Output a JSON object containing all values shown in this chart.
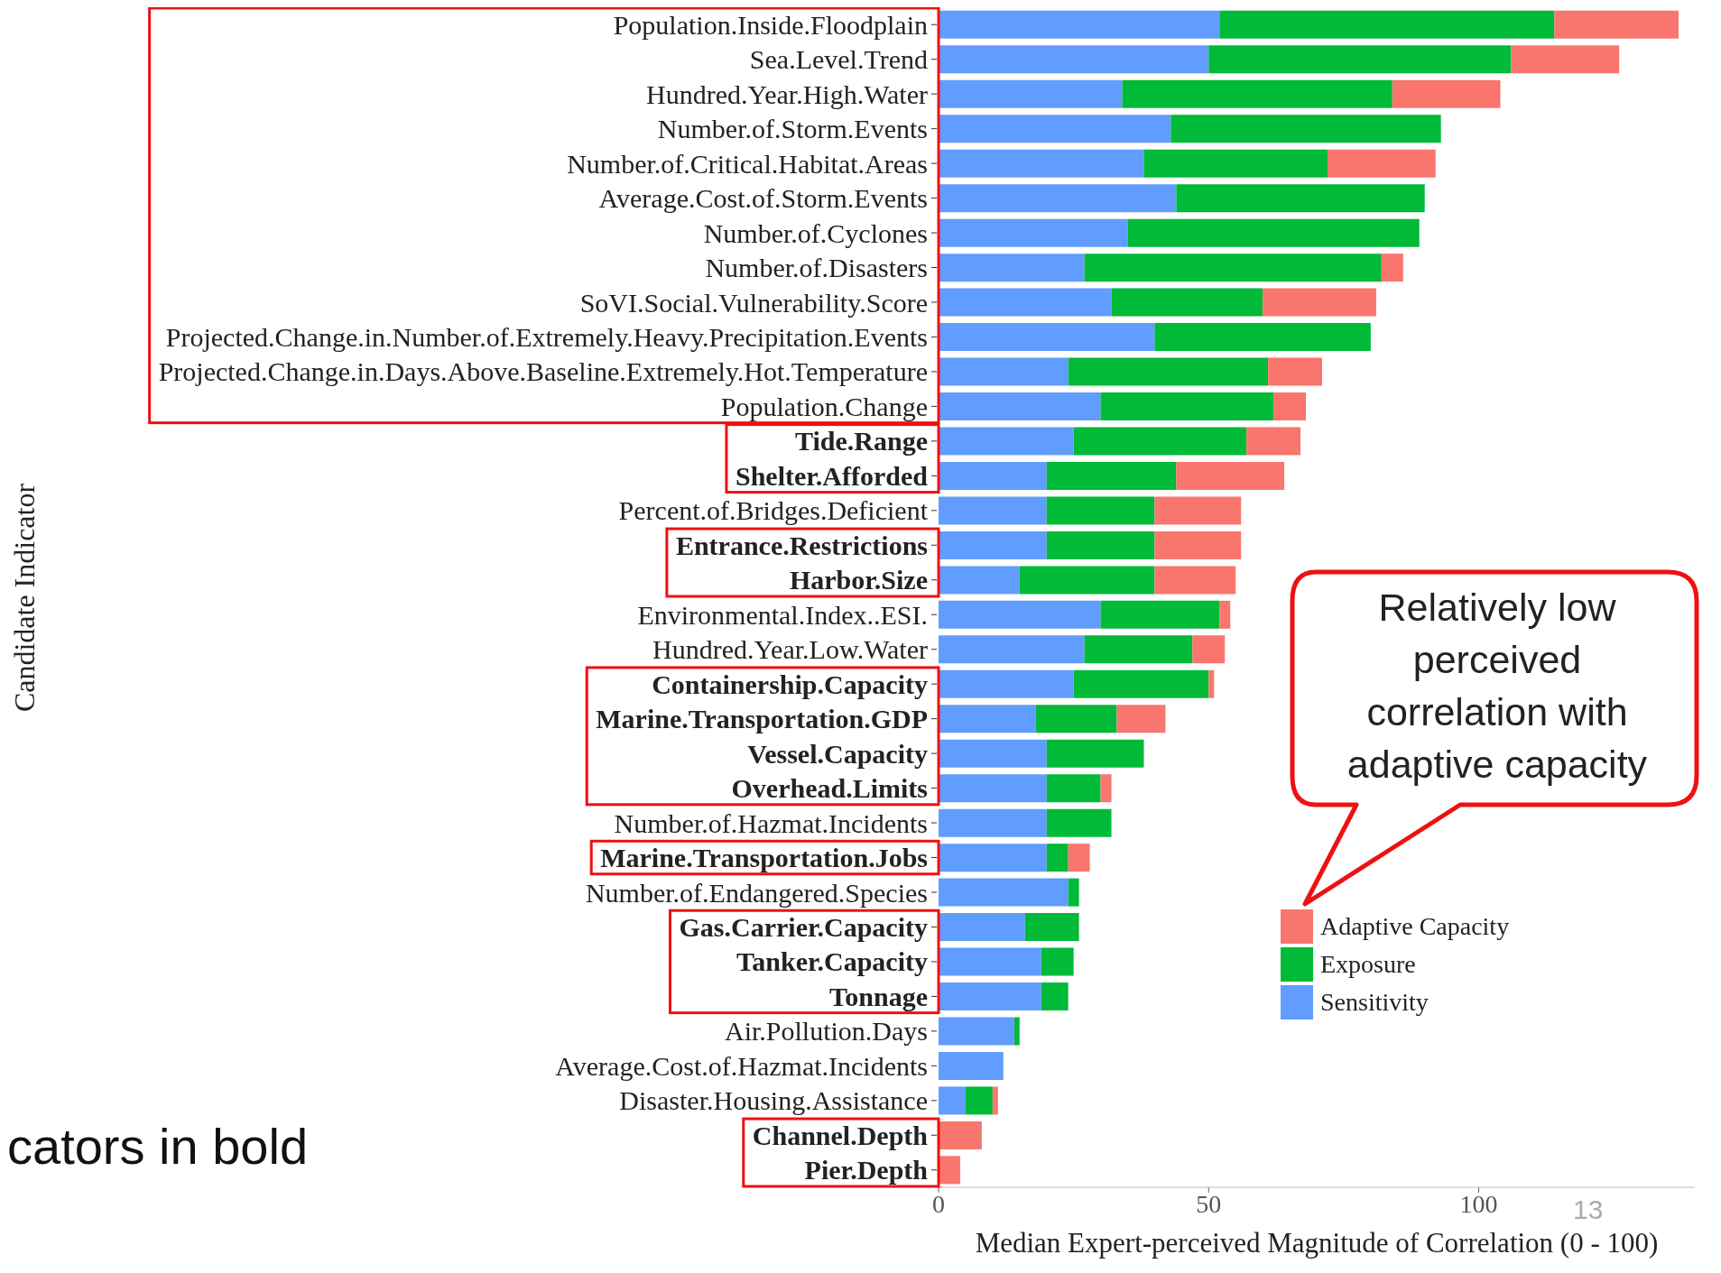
{
  "chart_data": {
    "type": "bar",
    "orientation": "horizontal",
    "stacked": true,
    "xlabel": "Median Expert-perceived Magnitude of Correlation (0 - 100)",
    "ylabel": "Candidate Indicator",
    "categories": [
      "Population.Inside.Floodplain",
      "Sea.Level.Trend",
      "Hundred.Year.High.Water",
      "Number.of.Storm.Events",
      "Number.of.Critical.Habitat.Areas",
      "Average.Cost.of.Storm.Events",
      "Number.of.Cyclones",
      "Number.of.Disasters",
      "SoVI.Social.Vulnerability.Score",
      "Projected.Change.in.Number.of.Extremely.Heavy.Precipitation.Events",
      "Projected.Change.in.Days.Above.Baseline.Extremely.Hot.Temperature",
      "Population.Change",
      "Tide.Range",
      "Shelter.Afforded",
      "Percent.of.Bridges.Deficient",
      "Entrance.Restrictions",
      "Harbor.Size",
      "Environmental.Index..ESI.",
      "Hundred.Year.Low.Water",
      "Containership.Capacity",
      "Marine.Transportation.GDP",
      "Vessel.Capacity",
      "Overhead.Limits",
      "Number.of.Hazmat.Incidents",
      "Marine.Transportation.Jobs",
      "Number.of.Endangered.Species",
      "Gas.Carrier.Capacity",
      "Tanker.Capacity",
      "Tonnage",
      "Air.Pollution.Days",
      "Average.Cost.of.Hazmat.Incidents",
      "Disaster.Housing.Assistance",
      "Channel.Depth",
      "Pier.Depth"
    ],
    "series": [
      {
        "name": "Sensitivity",
        "color": "#619cff",
        "values": [
          52,
          50,
          34,
          43,
          38,
          44,
          35,
          27,
          32,
          40,
          24,
          30,
          25,
          20,
          20,
          20,
          15,
          30,
          27,
          25,
          18,
          20,
          20,
          20,
          20,
          24,
          16,
          19,
          19,
          14,
          12,
          5,
          null,
          null
        ]
      },
      {
        "name": "Exposure",
        "color": "#00ba38",
        "values": [
          62,
          56,
          50,
          50,
          34,
          46,
          54,
          55,
          28,
          40,
          37,
          32,
          32,
          24,
          20,
          20,
          25,
          22,
          20,
          25,
          15,
          18,
          10,
          12,
          4,
          2,
          10,
          6,
          5,
          1,
          null,
          5,
          null,
          null
        ]
      },
      {
        "name": "Adaptive Capacity",
        "color": "#f8766d",
        "values": [
          23,
          20,
          20,
          null,
          20,
          null,
          null,
          4,
          21,
          null,
          10,
          6,
          10,
          20,
          16,
          16,
          15,
          2,
          6,
          1,
          9,
          null,
          2,
          null,
          4,
          null,
          null,
          null,
          null,
          null,
          null,
          1,
          8,
          4
        ]
      }
    ],
    "xlim": [
      0,
      140
    ],
    "xticks": [
      0,
      50,
      100
    ],
    "legend": "right",
    "annotations": [
      "Relatively low perceived correlation with adaptive capacity",
      "cators in bold",
      "13"
    ]
  }
}
